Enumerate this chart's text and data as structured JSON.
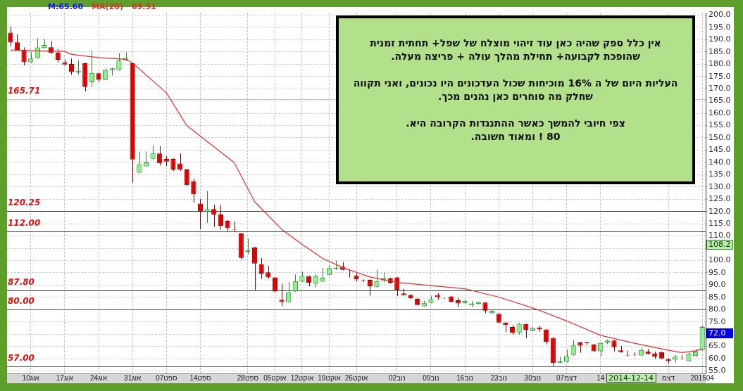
{
  "chart_data": {
    "type": "candlestick",
    "categories": [
      null,
      null,
      null,
      "10אוג",
      null,
      null,
      null,
      null,
      "17אוג",
      null,
      null,
      null,
      null,
      "24אוג",
      null,
      null,
      null,
      null,
      "31אוג",
      null,
      null,
      null,
      null,
      "07ספט",
      null,
      null,
      null,
      null,
      "14ספט",
      null,
      null,
      null,
      null,
      null,
      null,
      "28ספט",
      null,
      null,
      null,
      "05אוקט",
      null,
      null,
      null,
      "12אוקט",
      null,
      null,
      null,
      "19אוקט",
      null,
      null,
      null,
      "26אוקט",
      null,
      null,
      null,
      null,
      null,
      "02נוב",
      null,
      null,
      null,
      null,
      "09נוב",
      null,
      null,
      null,
      null,
      "16נוב",
      null,
      null,
      null,
      null,
      "23נוב",
      null,
      null,
      null,
      null,
      "30נוב",
      null,
      null,
      null,
      null,
      "07דצמ",
      null,
      null,
      null,
      null,
      "14",
      null,
      null,
      null,
      null,
      null,
      null,
      null,
      null,
      null,
      "דצמ",
      null,
      null,
      null,
      null,
      "201504"
    ],
    "ohlc": [
      [
        192.8,
        195.4,
        187.3,
        188.8
      ],
      [
        188.9,
        192.2,
        185.5,
        185.8
      ],
      [
        185.8,
        186.8,
        179.5,
        180.8
      ],
      [
        180.8,
        184.9,
        180.5,
        182.3
      ],
      [
        182.5,
        190.6,
        182.3,
        186.8
      ],
      [
        186.6,
        190.3,
        186.4,
        187.8
      ],
      [
        186.9,
        189.4,
        184.3,
        184.6
      ],
      [
        184.7,
        186.1,
        180.8,
        181.8
      ],
      [
        180.8,
        181.8,
        179.5,
        179.9
      ],
      [
        180.1,
        182.3,
        175.7,
        176.8
      ],
      [
        176.6,
        181.6,
        175.7,
        177.3
      ],
      [
        180.4,
        180.6,
        168.9,
        170.7
      ],
      [
        172.9,
        185.6,
        170.7,
        176.4
      ],
      [
        176.3,
        176.5,
        172.8,
        173.8
      ],
      [
        173.8,
        178.4,
        173.6,
        177.6
      ],
      [
        177.6,
        178.6,
        175.4,
        178.3
      ],
      [
        177.6,
        184.6,
        177.4,
        181.6
      ],
      [
        181.6,
        184.9,
        181.3,
        182.5
      ],
      [
        180.4,
        180.6,
        131.7,
        141.2
      ],
      [
        135.8,
        144.4,
        135.6,
        139.2
      ],
      [
        138.4,
        144.4,
        138.2,
        140
      ],
      [
        141.5,
        146.9,
        141.3,
        143.6
      ],
      [
        143.6,
        146.6,
        138.7,
        139.6
      ],
      [
        141.4,
        142.5,
        138.4,
        140.3
      ],
      [
        141.4,
        141.6,
        136.5,
        137.1
      ],
      [
        139.5,
        143.6,
        136.5,
        137
      ],
      [
        137.1,
        137.3,
        130.5,
        130.7
      ],
      [
        132.4,
        133.3,
        123.6,
        127
      ],
      [
        123.2,
        125.1,
        112.7,
        119.9
      ],
      [
        120,
        128.4,
        115.3,
        121
      ],
      [
        121,
        122.7,
        113.7,
        118.6
      ],
      [
        118.9,
        122.7,
        112.5,
        114.2
      ],
      [
        116.2,
        116.6,
        112,
        113.2
      ],
      [
        112.8,
        115.9,
        111.5,
        112.6
      ],
      [
        111,
        111.2,
        100.4,
        101.1
      ],
      [
        103.5,
        108.9,
        102.5,
        104.2
      ],
      [
        105.3,
        105.5,
        88,
        98.8
      ],
      [
        98.5,
        101,
        92.5,
        94.7
      ],
      [
        95.2,
        97.8,
        92.5,
        93.1
      ],
      [
        93.1,
        93.3,
        86.9,
        87.4
      ],
      [
        84,
        90.6,
        81.4,
        83.1
      ],
      [
        83.1,
        91.2,
        82.9,
        87.1
      ],
      [
        87.4,
        94.3,
        87.2,
        91.6
      ],
      [
        91.4,
        95.4,
        91.2,
        93.7
      ],
      [
        93.6,
        93.8,
        89.5,
        90.9
      ],
      [
        90.6,
        94.4,
        89,
        93.6
      ],
      [
        91.4,
        97,
        91.2,
        93
      ],
      [
        94.2,
        98.2,
        94,
        96.9
      ],
      [
        96.6,
        99.9,
        96.2,
        97
      ],
      [
        97.5,
        99.4,
        96,
        96.2
      ],
      [
        94,
        96.4,
        93.1,
        93.9
      ],
      [
        93.9,
        94.6,
        91.4,
        92.3
      ],
      [
        92,
        92.3,
        91.3,
        91.7
      ],
      [
        92.1,
        92.3,
        85.6,
        89.5
      ],
      [
        89.3,
        96.3,
        89,
        91.6
      ],
      [
        91.7,
        95.1,
        91.2,
        92.7
      ],
      [
        92.7,
        93,
        90.5,
        91
      ],
      [
        93.1,
        93.3,
        85.6,
        88.1
      ],
      [
        86.6,
        88.6,
        85.7,
        85.9
      ],
      [
        85.8,
        86.4,
        84.4,
        84.6
      ],
      [
        84.4,
        84.6,
        81.7,
        81.9
      ],
      [
        81.4,
        83.6,
        81.2,
        82.7
      ],
      [
        82.7,
        85.6,
        82.5,
        84.2
      ],
      [
        85.9,
        86.8,
        84,
        85.1
      ],
      [
        84.6,
        84.8,
        84.4,
        84.5
      ],
      [
        85.4,
        85.6,
        83,
        83.2
      ],
      [
        83.8,
        84.8,
        81,
        82.5
      ],
      [
        82.6,
        84,
        82.3,
        83.5
      ],
      [
        81.7,
        83.5,
        81,
        82.5
      ],
      [
        82.3,
        83.2,
        82.1,
        83
      ],
      [
        82.9,
        83.1,
        78.5,
        79.6
      ],
      [
        78.6,
        80,
        78.4,
        79.5
      ],
      [
        78.3,
        78.5,
        74.5,
        74.7
      ],
      [
        74.7,
        74.9,
        70.8,
        73.7
      ],
      [
        72.9,
        73.7,
        69.8,
        70.5
      ],
      [
        70.5,
        74.6,
        69.8,
        74.2
      ],
      [
        74.1,
        74.3,
        68.3,
        71.7
      ],
      [
        71.5,
        73,
        71.3,
        72.4
      ],
      [
        72.6,
        73.3,
        71,
        71.9
      ],
      [
        71.9,
        72.1,
        65.8,
        66.8
      ],
      [
        68.5,
        68.7,
        57,
        58.2
      ],
      [
        58.4,
        60.8,
        58.1,
        58.9
      ],
      [
        58.7,
        63.7,
        58.4,
        61
      ],
      [
        61.5,
        67.6,
        61.2,
        65.4
      ],
      [
        66.6,
        66.8,
        62.4,
        65.3
      ],
      [
        66.6,
        66.8,
        65.6,
        66.3
      ],
      [
        65.8,
        66,
        62.8,
        63
      ],
      [
        63,
        66.6,
        60.8,
        66.4
      ],
      [
        66.6,
        67.8,
        65.9,
        67.4
      ],
      [
        67.4,
        67.6,
        63,
        64.7
      ],
      [
        63.4,
        65.2,
        62.5,
        62.7
      ],
      [
        61.3,
        63.3,
        61.1,
        61.1
      ],
      [
        61.7,
        62.6,
        61.1,
        61.5
      ],
      [
        61.3,
        64.3,
        61.1,
        63.5
      ],
      [
        62.9,
        63.9,
        61.7,
        61.9
      ],
      [
        62.2,
        62.9,
        60,
        60.8
      ],
      [
        62.7,
        62.9,
        59.8,
        60.1
      ],
      [
        59.8,
        60.1,
        58,
        59.1
      ],
      [
        59.6,
        61.6,
        58.5,
        60.8
      ],
      [
        59.8,
        61.4,
        59.6,
        59.7
      ],
      [
        59,
        62.6,
        58.8,
        62.1
      ],
      [
        61.1,
        63.9,
        60.9,
        62.9
      ],
      [
        63.5,
        73.7,
        63.3,
        72.9
      ]
    ],
    "series": [
      {
        "type": "line",
        "name": "MA(20)",
        "color": "#e03030",
        "values": [
          185.8,
          null,
          null,
          null,
          185.4,
          null,
          null,
          null,
          185.2,
          184.0,
          null,
          null,
          null,
          182.7,
          null,
          null,
          null,
          182.0,
          180.5,
          null,
          null,
          null,
          null,
          168.3,
          null,
          null,
          155,
          null,
          null,
          null,
          null,
          null,
          null,
          139.9,
          null,
          null,
          124,
          null,
          null,
          null,
          112.7,
          null,
          null,
          106.6,
          null,
          null,
          100.9,
          null,
          null,
          97.1,
          null,
          null,
          null,
          93.3,
          null,
          null,
          null,
          91.1,
          null,
          null,
          null,
          null,
          null,
          null,
          null,
          null,
          null,
          88.5,
          null,
          null,
          null,
          null,
          85.1,
          null,
          null,
          null,
          null,
          80.7,
          null,
          null,
          null,
          null,
          75.4,
          null,
          null,
          null,
          null,
          69.5,
          null,
          null,
          null,
          null,
          66.3,
          null,
          null,
          null,
          null,
          63.4,
          null,
          62.5,
          null,
          63.2,
          63.9
        ]
      }
    ],
    "ylim": [
      54,
      201
    ],
    "yticks": [
      {
        "value": 55,
        "label": "55.0"
      },
      {
        "value": 60,
        "label": "60.0"
      },
      {
        "value": 65,
        "label": "65.0"
      },
      {
        "value": 70,
        "label": null
      },
      {
        "value": 75,
        "label": "75.0"
      },
      {
        "value": 80,
        "label": "80.0"
      },
      {
        "value": 85,
        "label": "85.0"
      },
      {
        "value": 90,
        "label": "90.0"
      },
      {
        "value": 95,
        "label": "95.0"
      },
      {
        "value": 100,
        "label": "100.0"
      },
      {
        "value": 105,
        "label": null
      },
      {
        "value": 110,
        "label": "110.0"
      },
      {
        "value": 115,
        "label": "115.0"
      },
      {
        "value": 120,
        "label": "120.0"
      },
      {
        "value": 125,
        "label": "125.0"
      },
      {
        "value": 130,
        "label": "130.0"
      },
      {
        "value": 135,
        "label": "135.0"
      },
      {
        "value": 140,
        "label": "140.0"
      },
      {
        "value": 145,
        "label": "145.0"
      },
      {
        "value": 150,
        "label": "150.0"
      },
      {
        "value": 155,
        "label": "155.0"
      },
      {
        "value": 160,
        "label": "160.0"
      },
      {
        "value": 165,
        "label": "165.0"
      },
      {
        "value": 170,
        "label": "170.0"
      },
      {
        "value": 175,
        "label": "175.0"
      },
      {
        "value": 180,
        "label": "180.0"
      },
      {
        "value": 185,
        "label": "185.0"
      },
      {
        "value": 190,
        "label": "190.0"
      },
      {
        "value": 195,
        "label": "195.0"
      },
      {
        "value": 200,
        "label": "200.0"
      }
    ],
    "ref_lines": [
      {
        "axis": "y",
        "value": 165.71,
        "label": "165.71",
        "color": "#c8c8c8"
      },
      {
        "axis": "y",
        "value": 120.25,
        "label": "120.25",
        "color": "#333333"
      },
      {
        "axis": "y",
        "value": 112,
        "label": "112.00",
        "color": "#555555"
      },
      {
        "axis": "y",
        "value": 87.8,
        "label": "87.80",
        "color": "#333333"
      },
      {
        "axis": "y",
        "value": 80,
        "label": "80.00",
        "color": "#555555"
      },
      {
        "axis": "y",
        "value": 57,
        "label": "57.00",
        "color": "#555555"
      }
    ],
    "annotations": [
      "אין כלל ספק שהיה כאן עוד זיהוי מוצלח של שפל+ תחתית זמנית\nשהופכת לקבועה+ תחילת מהלך עולה + פריצה מעלה.\n\nהעליות היום של ה 16% מוכיחות שכול העדכונים היו נכונים, ואני תקווה\nשחלק מה סוחרים כאן נהנים מכך.\n\nצפי חיובי להמשך כאשר ההתנגדות הקרובה היא.\n80 ! ומאוד חשובה.",
      "M:65.60",
      "69.51",
      "108.2",
      "72.0",
      "2014-12-14"
    ],
    "grid": true,
    "legend": "top left"
  }
}
